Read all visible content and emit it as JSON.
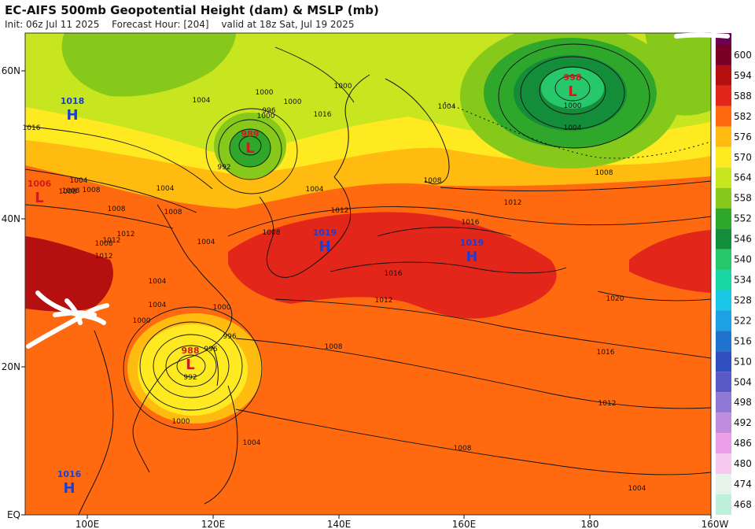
{
  "header": {
    "title": "EC-AIFS 500mb Geopotential Height (dam) & MSLP (mb)",
    "init": "Init: 06z Jul 11 2025",
    "forecast_hour": "Forecast Hour: [204]",
    "valid": "valid at 18z Sat, Jul 19 2025"
  },
  "axes": {
    "lat_labels": [
      "60N",
      "40N",
      "20N",
      "EQ"
    ],
    "lon_labels": [
      "100E",
      "120E",
      "140E",
      "160E",
      "180",
      "160W"
    ]
  },
  "colorbar": {
    "levels": [
      "600",
      "594",
      "588",
      "582",
      "576",
      "570",
      "564",
      "558",
      "552",
      "546",
      "540",
      "534",
      "528",
      "522",
      "516",
      "510",
      "504",
      "498",
      "492",
      "486",
      "480",
      "474",
      "468"
    ],
    "colors": [
      "#7a0028",
      "#b50f0f",
      "#e3261a",
      "#ff6a10",
      "#ffbb10",
      "#ffea22",
      "#c8e620",
      "#86c91a",
      "#2fa72a",
      "#138d3a",
      "#26c86b",
      "#19d7a5",
      "#1ac7e6",
      "#1ea1e4",
      "#1f73cf",
      "#2f4fbe",
      "#5b58c8",
      "#8f78d6",
      "#c08ce0",
      "#ee9ee8",
      "#f6c9f0",
      "#e6f3e8",
      "#bff0dc"
    ],
    "top_color": "#6b0050"
  },
  "pressure_systems": [
    {
      "type": "H",
      "value": "1018",
      "color": "#1a3fd6"
    },
    {
      "type": "L",
      "value": "1006",
      "color": "#d01b1b"
    },
    {
      "type": "L",
      "value": "989",
      "color": "#d01b1b"
    },
    {
      "type": "L",
      "value": "998",
      "color": "#d01b1b"
    },
    {
      "type": "H",
      "value": "1019",
      "color": "#1a3fd6"
    },
    {
      "type": "H",
      "value": "1019",
      "color": "#1a3fd6"
    },
    {
      "type": "L",
      "value": "988",
      "color": "#d01b1b"
    },
    {
      "type": "H",
      "value": "1016",
      "color": "#1a3fd6"
    }
  ],
  "isobar_labels": [
    "1004",
    "1000",
    "1000",
    "1000",
    "1004",
    "1004",
    "1004",
    "1008",
    "1016",
    "1012",
    "1012",
    "1008",
    "1008",
    "1004",
    "1008",
    "1012",
    "1008",
    "1004",
    "1004",
    "1000",
    "996",
    "996",
    "1016",
    "992",
    "1008",
    "1004",
    "1000",
    "1012",
    "1016",
    "1020",
    "1012",
    "1016",
    "1000",
    "992",
    "996",
    "1000",
    "1004",
    "1008",
    "1008",
    "1012",
    "1016",
    "1008",
    "1000",
    "1004",
    "1008",
    "1012",
    "1004",
    "1008"
  ]
}
